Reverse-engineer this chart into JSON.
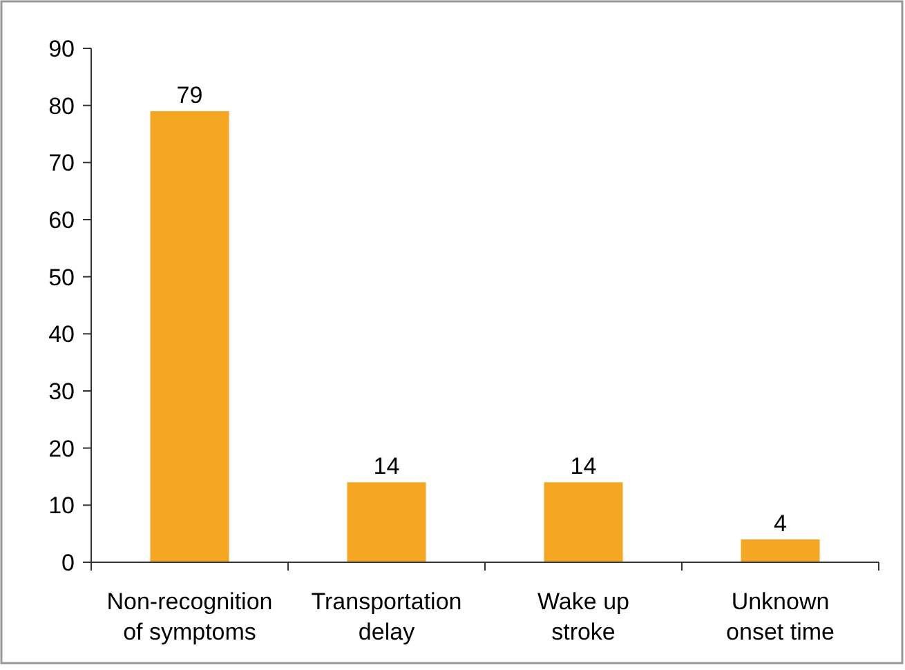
{
  "chart_data": {
    "type": "bar",
    "categories": [
      "Non-recognition of symptoms",
      "Transportation delay",
      "Wake up stroke",
      "Unknown onset time"
    ],
    "values": [
      79,
      14,
      14,
      4
    ],
    "color": "#f5a623",
    "ylim": [
      0,
      90
    ],
    "yticks": [
      0,
      10,
      20,
      30,
      40,
      50,
      60,
      70,
      80,
      90
    ],
    "data_labels": true,
    "grid": false
  }
}
